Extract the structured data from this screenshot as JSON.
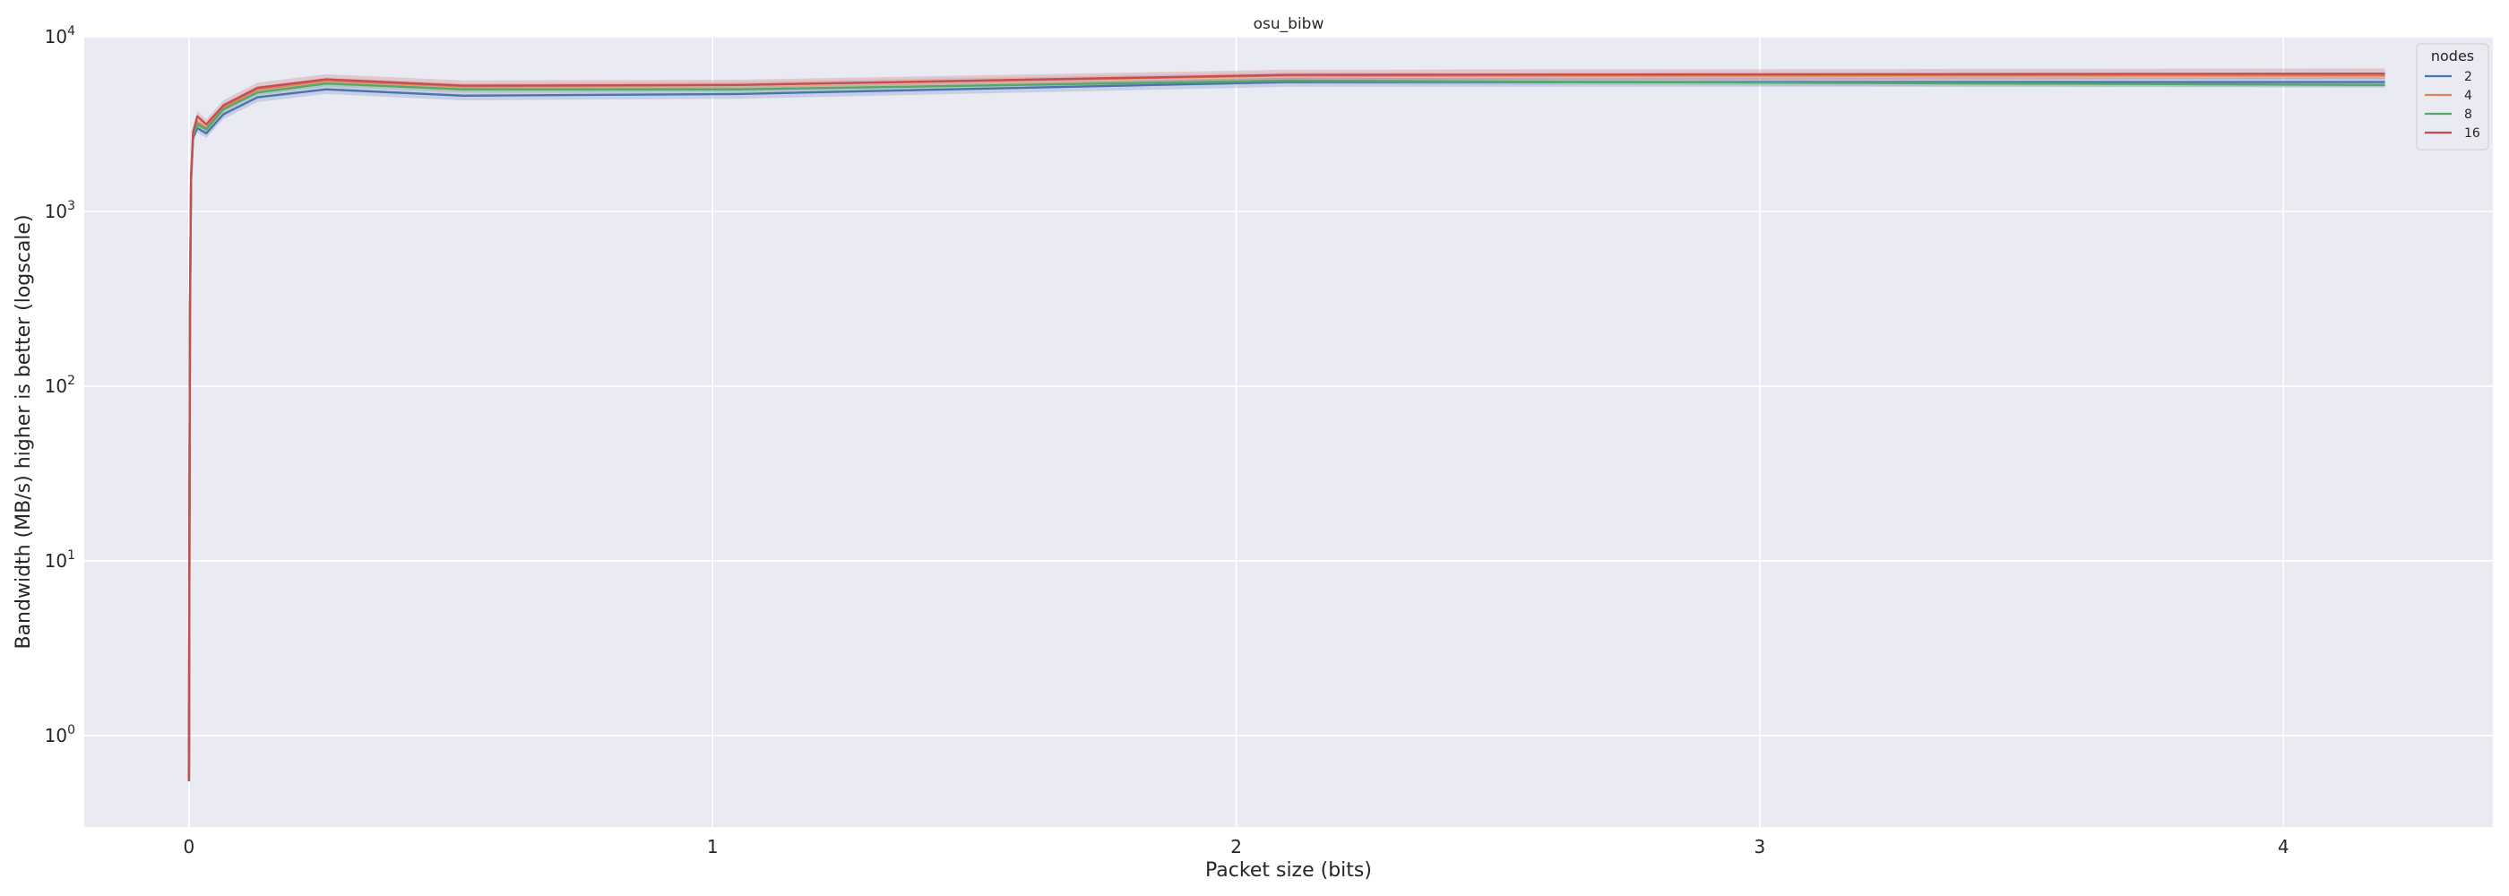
{
  "chart_data": {
    "type": "line",
    "title": "osu_bibw",
    "xlabel": "Packet size (bits)",
    "ylabel": "Bandwidth (MB/s) higher is better (logscale)",
    "yscale": "log",
    "xlim": [
      -0.2,
      4.4
    ],
    "ylim": [
      0.3,
      10000
    ],
    "x_ticks": [
      0,
      1,
      2,
      3,
      4
    ],
    "y_ticks": [
      1,
      10,
      100,
      1000,
      10000
    ],
    "y_tick_labels": [
      {
        "base": "10",
        "exp": "0"
      },
      {
        "base": "10",
        "exp": "1"
      },
      {
        "base": "10",
        "exp": "2"
      },
      {
        "base": "10",
        "exp": "3"
      },
      {
        "base": "10",
        "exp": "4"
      }
    ],
    "grid": true,
    "legend": {
      "title": "nodes",
      "placement": "top-right"
    },
    "x": [
      0,
      0.001,
      0.002,
      0.004,
      0.008,
      0.016,
      0.033,
      0.066,
      0.131,
      0.262,
      0.524,
      1.049,
      2.097,
      4.194
    ],
    "series": [
      {
        "name": "2",
        "color": "#4c72b0",
        "values": [
          0.55,
          25,
          260,
          1500,
          2650,
          3000,
          2800,
          3600,
          4500,
          5000,
          4600,
          4700,
          5500,
          5500
        ],
        "band": 0.06
      },
      {
        "name": "4",
        "color": "#dd8452",
        "values": [
          0.55,
          26,
          270,
          1550,
          2750,
          3250,
          3000,
          3950,
          5000,
          5600,
          5200,
          5300,
          6000,
          6000
        ],
        "band": 0.04
      },
      {
        "name": "8",
        "color": "#55a868",
        "values": [
          0.55,
          25,
          265,
          1500,
          2700,
          3150,
          2950,
          3850,
          4800,
          5400,
          5000,
          5000,
          5600,
          5300
        ],
        "band": 0.04
      },
      {
        "name": "16",
        "color": "#c44e52",
        "values": [
          0.55,
          27,
          280,
          1600,
          2850,
          3500,
          3150,
          4050,
          5100,
          5700,
          5250,
          5300,
          6050,
          6150
        ],
        "band": 0.07
      }
    ]
  }
}
